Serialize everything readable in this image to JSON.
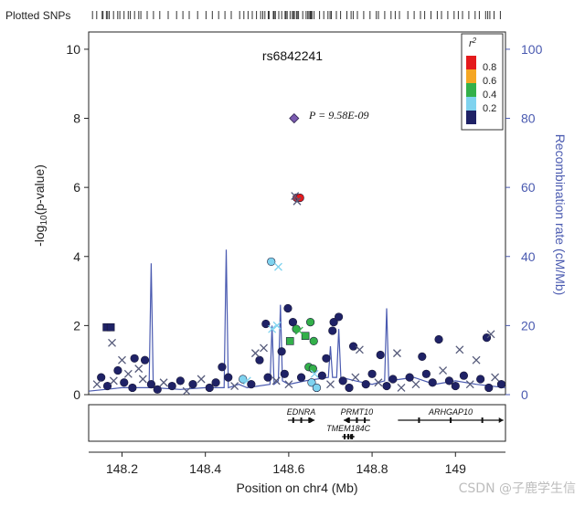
{
  "header": {
    "plotted_snps_label": "Plotted SNPs"
  },
  "watermark": "CSDN @子鹿学生信",
  "chart_data": {
    "type": "scatter",
    "title": "rs6842241",
    "annotation": {
      "text": "P = 9.58E-09",
      "x": 148.613,
      "y": 8.0
    },
    "xlabel": "Position on chr4 (Mb)",
    "ylabel": "-log10(p-value)",
    "y2label": "Recombination rate (cM/Mb)",
    "xlim": [
      148.12,
      149.12
    ],
    "ylim": [
      0,
      10.5
    ],
    "y2lim": [
      0,
      105
    ],
    "xticks": [
      148.2,
      148.4,
      148.6,
      148.8,
      149.0
    ],
    "xtick_labels": [
      "148.2",
      "148.4",
      "148.6",
      "148.8",
      "149"
    ],
    "yticks": [
      0,
      2,
      4,
      6,
      8,
      10
    ],
    "y2ticks": [
      0,
      20,
      40,
      60,
      80,
      100
    ],
    "colors": {
      "axis": "#222222",
      "recomb": "#4a5ab0",
      "r2_08": "#e41a1c",
      "r2_06": "#f5a623",
      "r2_04": "#33b04a",
      "r2_02": "#7fd3ef",
      "r2_00": "#1f2266",
      "lead": "#7b5bb0"
    },
    "legend": {
      "title": "r2",
      "placement": "top-right",
      "items": [
        {
          "label": "0.8",
          "color": "#e41a1c"
        },
        {
          "label": "0.6",
          "color": "#f5a623"
        },
        {
          "label": "0.4",
          "color": "#33b04a"
        },
        {
          "label": "0.2",
          "color": "#7fd3ef"
        },
        {
          "label": "",
          "color": "#1f2266"
        }
      ]
    },
    "lead_snp": {
      "x": 148.613,
      "y": 8.0
    },
    "points": [
      {
        "x": 148.619,
        "y": 5.7,
        "c": 5,
        "s": "circle"
      },
      {
        "x": 148.627,
        "y": 5.7,
        "c": 4,
        "s": "circle"
      },
      {
        "x": 148.615,
        "y": 5.75,
        "c": 0,
        "s": "cross"
      },
      {
        "x": 148.62,
        "y": 5.6,
        "c": 0,
        "s": "cross"
      },
      {
        "x": 148.558,
        "y": 3.85,
        "c": 1,
        "s": "circle"
      },
      {
        "x": 148.575,
        "y": 3.7,
        "c": 1,
        "s": "cross"
      },
      {
        "x": 148.598,
        "y": 2.5,
        "c": 0,
        "s": "circle"
      },
      {
        "x": 148.61,
        "y": 2.1,
        "c": 0,
        "s": "circle"
      },
      {
        "x": 148.545,
        "y": 2.05,
        "c": 0,
        "s": "circle"
      },
      {
        "x": 148.572,
        "y": 2.0,
        "c": 1,
        "s": "cross"
      },
      {
        "x": 148.56,
        "y": 1.9,
        "c": 1,
        "s": "cross"
      },
      {
        "x": 148.652,
        "y": 2.1,
        "c": 2,
        "s": "circle"
      },
      {
        "x": 148.618,
        "y": 1.9,
        "c": 2,
        "s": "circle"
      },
      {
        "x": 148.64,
        "y": 1.7,
        "c": 2,
        "s": "square"
      },
      {
        "x": 148.603,
        "y": 1.55,
        "c": 2,
        "s": "square"
      },
      {
        "x": 148.66,
        "y": 1.55,
        "c": 2,
        "s": "circle"
      },
      {
        "x": 148.625,
        "y": 1.85,
        "c": 2,
        "s": "cross"
      },
      {
        "x": 148.648,
        "y": 0.8,
        "c": 2,
        "s": "circle"
      },
      {
        "x": 148.658,
        "y": 0.75,
        "c": 2,
        "s": "circle"
      },
      {
        "x": 148.662,
        "y": 0.6,
        "c": 1,
        "s": "cross"
      },
      {
        "x": 148.655,
        "y": 0.35,
        "c": 1,
        "s": "circle"
      },
      {
        "x": 148.667,
        "y": 0.2,
        "c": 1,
        "s": "circle"
      },
      {
        "x": 148.49,
        "y": 0.45,
        "c": 1,
        "s": "circle"
      },
      {
        "x": 148.5,
        "y": 0.4,
        "c": 1,
        "s": "cross"
      },
      {
        "x": 148.708,
        "y": 2.1,
        "c": 0,
        "s": "circle"
      },
      {
        "x": 148.72,
        "y": 2.25,
        "c": 0,
        "s": "circle"
      },
      {
        "x": 148.705,
        "y": 1.85,
        "c": 0,
        "s": "circle"
      },
      {
        "x": 148.163,
        "y": 1.95,
        "c": 0,
        "s": "square"
      },
      {
        "x": 148.173,
        "y": 1.95,
        "c": 0,
        "s": "square"
      },
      {
        "x": 148.176,
        "y": 1.5,
        "c": 0,
        "s": "cross"
      },
      {
        "x": 148.96,
        "y": 1.6,
        "c": 0,
        "s": "circle"
      },
      {
        "x": 149.075,
        "y": 1.65,
        "c": 0,
        "s": "circle"
      },
      {
        "x": 149.085,
        "y": 1.75,
        "c": 0,
        "s": "cross"
      },
      {
        "x": 149.01,
        "y": 1.3,
        "c": 0,
        "s": "cross"
      },
      {
        "x": 148.92,
        "y": 1.1,
        "c": 0,
        "s": "circle"
      },
      {
        "x": 149.05,
        "y": 1.0,
        "c": 0,
        "s": "cross"
      },
      {
        "x": 148.54,
        "y": 1.35,
        "c": 0,
        "s": "cross"
      },
      {
        "x": 148.53,
        "y": 1.0,
        "c": 0,
        "s": "circle"
      },
      {
        "x": 148.52,
        "y": 1.2,
        "c": 0,
        "s": "cross"
      },
      {
        "x": 148.583,
        "y": 1.25,
        "c": 0,
        "s": "circle"
      },
      {
        "x": 148.69,
        "y": 1.05,
        "c": 0,
        "s": "circle"
      },
      {
        "x": 148.755,
        "y": 1.4,
        "c": 0,
        "s": "circle"
      },
      {
        "x": 148.77,
        "y": 1.3,
        "c": 0,
        "s": "cross"
      },
      {
        "x": 148.82,
        "y": 1.15,
        "c": 0,
        "s": "circle"
      },
      {
        "x": 148.86,
        "y": 1.2,
        "c": 0,
        "s": "cross"
      },
      {
        "x": 148.44,
        "y": 0.8,
        "c": 0,
        "s": "circle"
      },
      {
        "x": 148.455,
        "y": 0.5,
        "c": 0,
        "s": "circle"
      },
      {
        "x": 148.2,
        "y": 1.0,
        "c": 0,
        "s": "cross"
      },
      {
        "x": 148.23,
        "y": 1.05,
        "c": 0,
        "s": "circle"
      },
      {
        "x": 148.255,
        "y": 1.0,
        "c": 0,
        "s": "circle"
      },
      {
        "x": 148.19,
        "y": 0.7,
        "c": 0,
        "s": "circle"
      },
      {
        "x": 148.215,
        "y": 0.6,
        "c": 0,
        "s": "cross"
      },
      {
        "x": 148.24,
        "y": 0.75,
        "c": 0,
        "s": "cross"
      },
      {
        "x": 148.15,
        "y": 0.5,
        "c": 0,
        "s": "circle"
      },
      {
        "x": 148.14,
        "y": 0.3,
        "c": 0,
        "s": "cross"
      },
      {
        "x": 148.165,
        "y": 0.25,
        "c": 0,
        "s": "circle"
      },
      {
        "x": 148.18,
        "y": 0.4,
        "c": 0,
        "s": "cross"
      },
      {
        "x": 148.205,
        "y": 0.35,
        "c": 0,
        "s": "circle"
      },
      {
        "x": 148.225,
        "y": 0.2,
        "c": 0,
        "s": "circle"
      },
      {
        "x": 148.25,
        "y": 0.45,
        "c": 0,
        "s": "cross"
      },
      {
        "x": 148.27,
        "y": 0.3,
        "c": 0,
        "s": "circle"
      },
      {
        "x": 148.285,
        "y": 0.15,
        "c": 0,
        "s": "circle"
      },
      {
        "x": 148.3,
        "y": 0.35,
        "c": 0,
        "s": "cross"
      },
      {
        "x": 148.32,
        "y": 0.25,
        "c": 0,
        "s": "circle"
      },
      {
        "x": 148.34,
        "y": 0.4,
        "c": 0,
        "s": "circle"
      },
      {
        "x": 148.355,
        "y": 0.1,
        "c": 0,
        "s": "cross"
      },
      {
        "x": 148.37,
        "y": 0.3,
        "c": 0,
        "s": "circle"
      },
      {
        "x": 148.39,
        "y": 0.45,
        "c": 0,
        "s": "cross"
      },
      {
        "x": 148.41,
        "y": 0.2,
        "c": 0,
        "s": "circle"
      },
      {
        "x": 148.425,
        "y": 0.35,
        "c": 0,
        "s": "circle"
      },
      {
        "x": 148.47,
        "y": 0.25,
        "c": 0,
        "s": "cross"
      },
      {
        "x": 148.51,
        "y": 0.3,
        "c": 0,
        "s": "circle"
      },
      {
        "x": 148.55,
        "y": 0.5,
        "c": 0,
        "s": "circle"
      },
      {
        "x": 148.57,
        "y": 0.4,
        "c": 0,
        "s": "cross"
      },
      {
        "x": 148.59,
        "y": 0.6,
        "c": 0,
        "s": "circle"
      },
      {
        "x": 148.6,
        "y": 0.3,
        "c": 0,
        "s": "cross"
      },
      {
        "x": 148.63,
        "y": 0.5,
        "c": 0,
        "s": "circle"
      },
      {
        "x": 148.68,
        "y": 0.55,
        "c": 0,
        "s": "circle"
      },
      {
        "x": 148.7,
        "y": 0.3,
        "c": 0,
        "s": "cross"
      },
      {
        "x": 148.73,
        "y": 0.4,
        "c": 0,
        "s": "circle"
      },
      {
        "x": 148.745,
        "y": 0.2,
        "c": 0,
        "s": "circle"
      },
      {
        "x": 148.76,
        "y": 0.5,
        "c": 0,
        "s": "cross"
      },
      {
        "x": 148.785,
        "y": 0.3,
        "c": 0,
        "s": "circle"
      },
      {
        "x": 148.8,
        "y": 0.6,
        "c": 0,
        "s": "circle"
      },
      {
        "x": 148.815,
        "y": 0.35,
        "c": 0,
        "s": "cross"
      },
      {
        "x": 148.835,
        "y": 0.25,
        "c": 0,
        "s": "circle"
      },
      {
        "x": 148.85,
        "y": 0.45,
        "c": 0,
        "s": "circle"
      },
      {
        "x": 148.87,
        "y": 0.2,
        "c": 0,
        "s": "cross"
      },
      {
        "x": 148.89,
        "y": 0.5,
        "c": 0,
        "s": "circle"
      },
      {
        "x": 148.905,
        "y": 0.3,
        "c": 0,
        "s": "cross"
      },
      {
        "x": 148.93,
        "y": 0.6,
        "c": 0,
        "s": "circle"
      },
      {
        "x": 148.945,
        "y": 0.35,
        "c": 0,
        "s": "circle"
      },
      {
        "x": 148.97,
        "y": 0.7,
        "c": 0,
        "s": "cross"
      },
      {
        "x": 148.985,
        "y": 0.4,
        "c": 0,
        "s": "circle"
      },
      {
        "x": 149.0,
        "y": 0.25,
        "c": 0,
        "s": "circle"
      },
      {
        "x": 149.02,
        "y": 0.55,
        "c": 0,
        "s": "circle"
      },
      {
        "x": 149.035,
        "y": 0.3,
        "c": 0,
        "s": "cross"
      },
      {
        "x": 149.06,
        "y": 0.45,
        "c": 0,
        "s": "circle"
      },
      {
        "x": 149.08,
        "y": 0.2,
        "c": 0,
        "s": "circle"
      },
      {
        "x": 149.095,
        "y": 0.5,
        "c": 0,
        "s": "cross"
      },
      {
        "x": 149.11,
        "y": 0.3,
        "c": 0,
        "s": "circle"
      }
    ],
    "recombination": [
      [
        148.12,
        1
      ],
      [
        148.16,
        1.5
      ],
      [
        148.2,
        2
      ],
      [
        148.265,
        2
      ],
      [
        148.27,
        38
      ],
      [
        148.275,
        2
      ],
      [
        148.34,
        1.5
      ],
      [
        148.4,
        2
      ],
      [
        148.445,
        2
      ],
      [
        148.45,
        42
      ],
      [
        148.455,
        2
      ],
      [
        148.48,
        3
      ],
      [
        148.5,
        2
      ],
      [
        148.555,
        3
      ],
      [
        148.56,
        20
      ],
      [
        148.565,
        3
      ],
      [
        148.575,
        4
      ],
      [
        148.58,
        26
      ],
      [
        148.585,
        4
      ],
      [
        148.6,
        3
      ],
      [
        148.64,
        4
      ],
      [
        148.695,
        5
      ],
      [
        148.7,
        14
      ],
      [
        148.705,
        5
      ],
      [
        148.715,
        5
      ],
      [
        148.72,
        19
      ],
      [
        148.725,
        5
      ],
      [
        148.76,
        4
      ],
      [
        148.8,
        3
      ],
      [
        148.83,
        4
      ],
      [
        148.835,
        25
      ],
      [
        148.84,
        4
      ],
      [
        148.9,
        5
      ],
      [
        148.95,
        3
      ],
      [
        149.0,
        4
      ],
      [
        149.05,
        3
      ],
      [
        149.12,
        2
      ]
    ],
    "genes": [
      {
        "name": "EDNRA",
        "start": 148.598,
        "end": 148.662,
        "row": 0,
        "strand": "+"
      },
      {
        "name": "PRMT10",
        "start": 148.732,
        "end": 148.795,
        "row": 0,
        "strand": "-"
      },
      {
        "name": "ARHGAP10",
        "start": 148.862,
        "end": 149.115,
        "row": 0,
        "strand": "+"
      },
      {
        "name": "TMEM184C",
        "start": 148.728,
        "end": 148.758,
        "row": 1,
        "strand": "+"
      }
    ]
  }
}
